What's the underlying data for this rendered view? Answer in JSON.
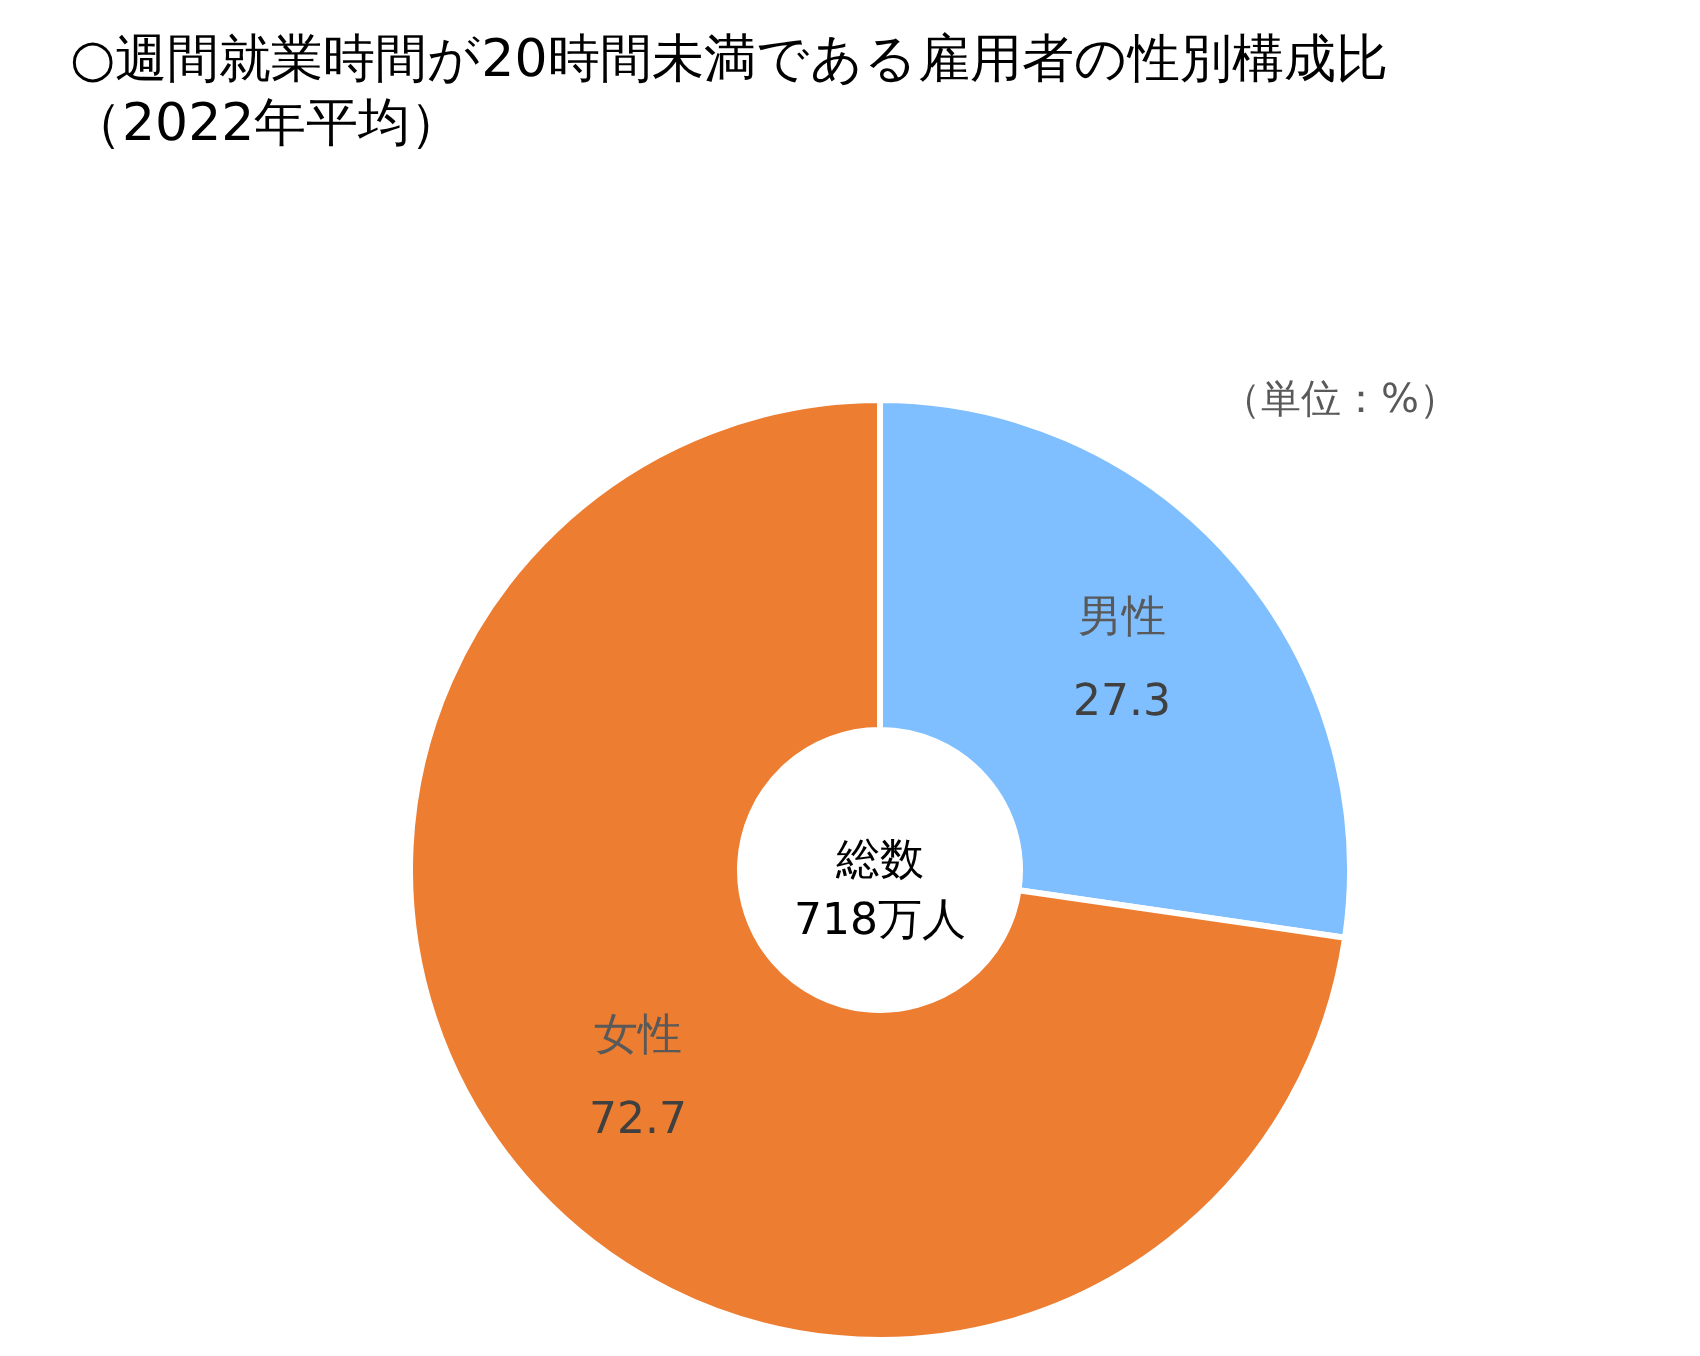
{
  "chart_data": {
    "type": "donut",
    "title": "○週間就業時間が20時間未満である雇用者の性別構成比",
    "subtitle": "（2022年平均）",
    "categories": [
      "男性",
      "女性"
    ],
    "values": [
      27.3,
      72.7
    ],
    "colors": [
      "#7fbfff",
      "#ed7d31"
    ],
    "data_labels": true,
    "annotations": [
      "（単位：%）",
      "総数\n718万人"
    ]
  }
}
